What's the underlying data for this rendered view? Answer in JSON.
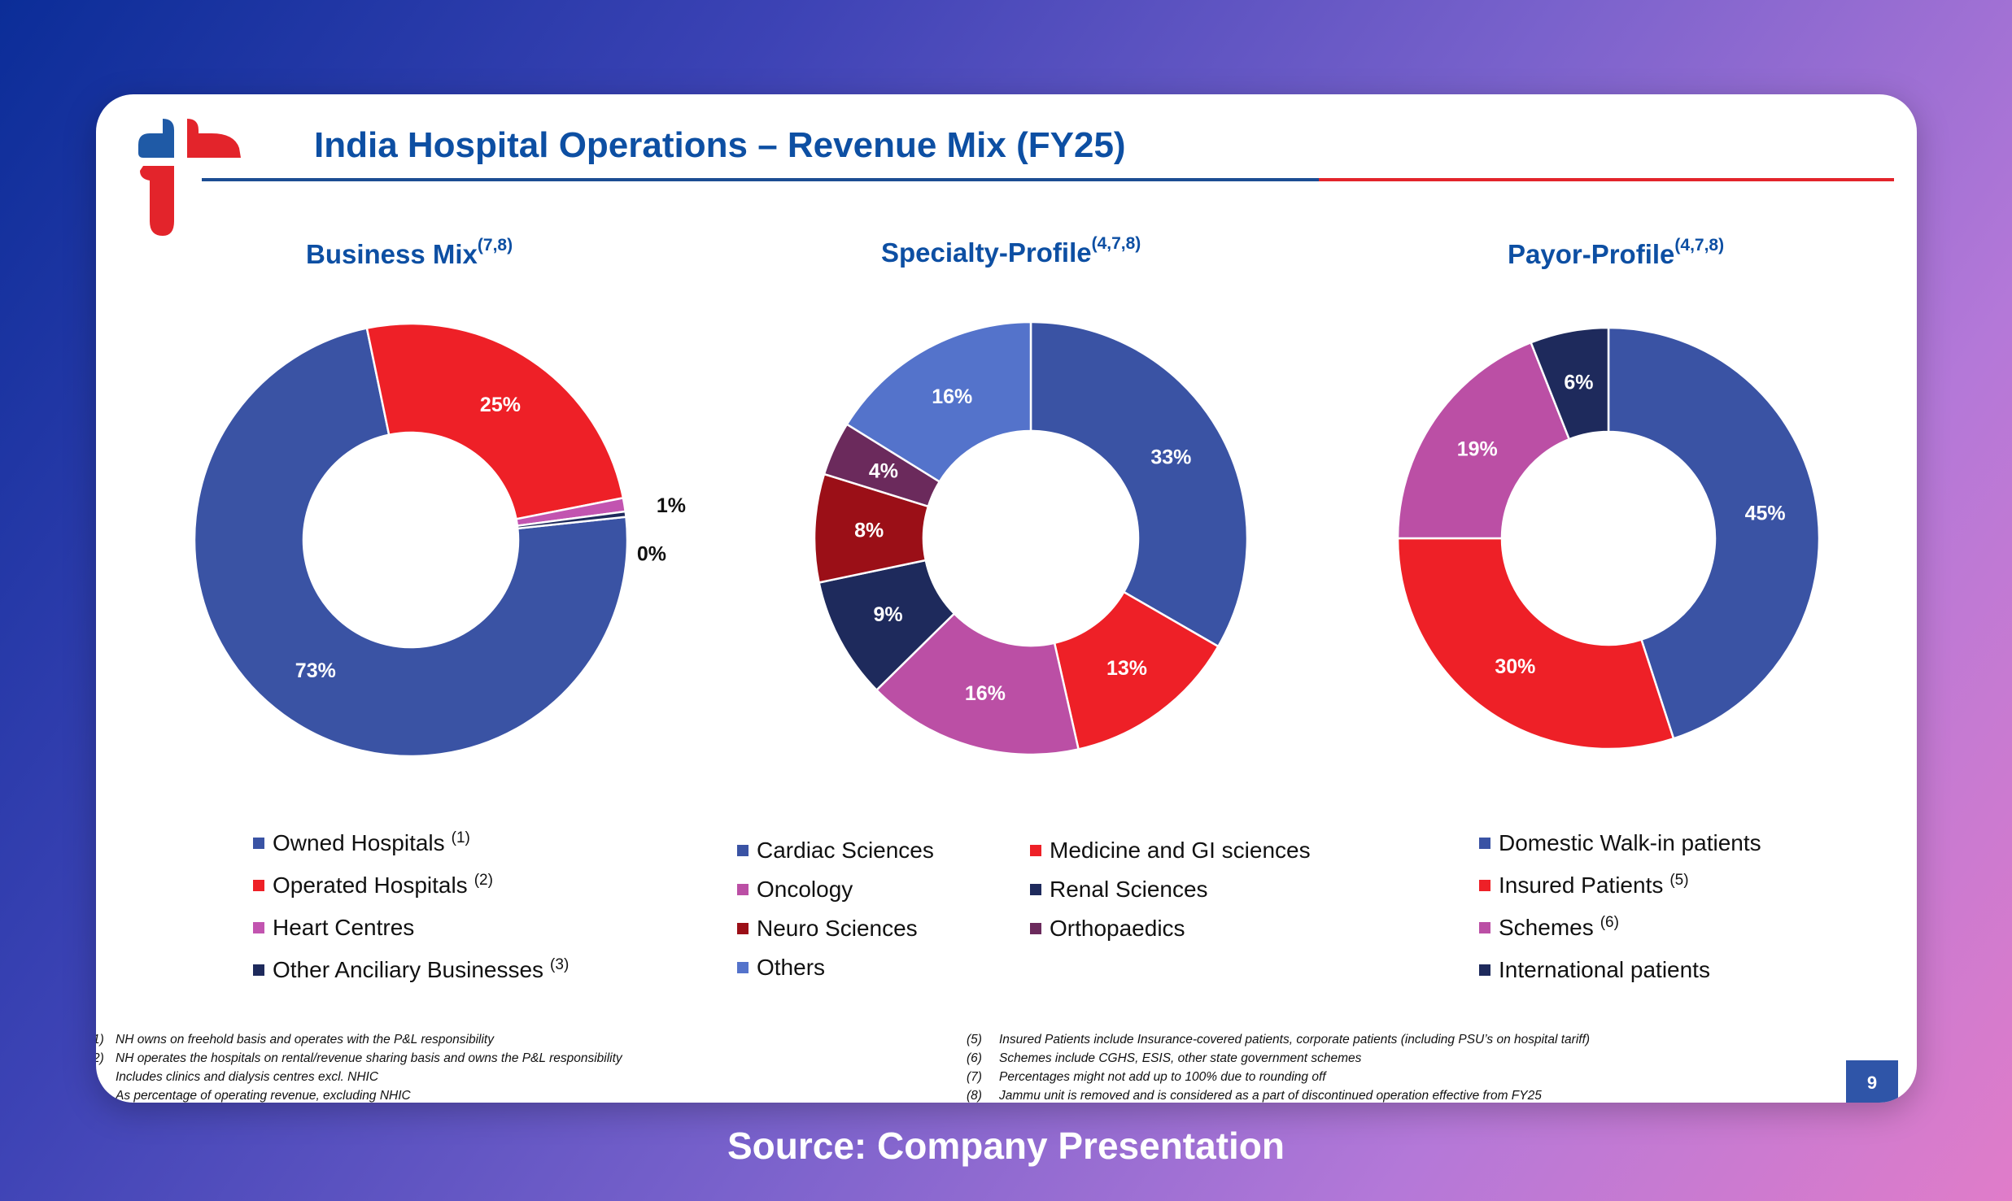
{
  "slide": {
    "title": "India Hospital Operations – Revenue Mix (FY25)",
    "page_number": "9",
    "source_caption": "Source: Company Presentation"
  },
  "colors": {
    "title_blue": "#0d4fa3",
    "rule_blue": "#1c4d93",
    "rule_red": "#e3242b"
  },
  "chart_data": [
    {
      "type": "pie",
      "donut": true,
      "title": "Business Mix",
      "title_sup": "(7,8)",
      "categories": [
        "Owned Hospitals",
        "Operated Hospitals",
        "Heart Centres",
        "Other Anciliary Businesses"
      ],
      "category_notes": [
        "(1)",
        "(2)",
        "",
        "(3)"
      ],
      "values": [
        73,
        25,
        1,
        0.4
      ],
      "labels": [
        "73%",
        "25%",
        "1%",
        "0%"
      ],
      "colors": [
        "#3a53a4",
        "#ee2027",
        "#c254b0",
        "#1e2a5c"
      ],
      "legend_position": "bottom"
    },
    {
      "type": "pie",
      "donut": true,
      "title": "Specialty-Profile",
      "title_sup": "(4,7,8)",
      "categories": [
        "Cardiac Sciences",
        "Medicine and GI sciences",
        "Oncology",
        "Renal Sciences",
        "Neuro Sciences",
        "Orthopaedics",
        "Others"
      ],
      "slice_order": [
        "Cardiac Sciences",
        "Medicine and GI sciences",
        "Oncology",
        "Renal Sciences",
        "Neuro Sciences",
        "Orthopaedics",
        "Others"
      ],
      "values": [
        33,
        13,
        16,
        9,
        8,
        4,
        16
      ],
      "labels": [
        "33%",
        "13%",
        "16%",
        "9%",
        "8%",
        "4%",
        "16%"
      ],
      "colors": [
        "#3a53a4",
        "#ee2027",
        "#bb4fa5",
        "#1e2a5c",
        "#9b0f17",
        "#6b2a5c",
        "#5473cb"
      ],
      "legend_position": "bottom"
    },
    {
      "type": "pie",
      "donut": true,
      "title": "Payor-Profile",
      "title_sup": "(4,7,8)",
      "categories": [
        "Domestic Walk-in patients",
        "Insured Patients",
        "Schemes",
        "International patients"
      ],
      "category_notes": [
        "",
        "(5)",
        "(6)",
        ""
      ],
      "values": [
        45,
        30,
        19,
        6
      ],
      "labels": [
        "45%",
        "30%",
        "19%",
        "6%"
      ],
      "colors": [
        "#3a53a4",
        "#ee2027",
        "#bb4fa5",
        "#1e2a5c"
      ],
      "legend_position": "bottom"
    }
  ],
  "footnotes_left": [
    {
      "num": "1)",
      "text": "NH owns on freehold basis and operates with the P&L responsibility"
    },
    {
      "num": "2)",
      "text": "NH operates the hospitals on rental/revenue sharing basis and owns the P&L responsibility"
    },
    {
      "num": ")",
      "text": "Includes clinics and dialysis centres excl. NHIC"
    },
    {
      "num": "",
      "text": "As percentage of operating revenue, excluding NHIC"
    }
  ],
  "footnotes_right": [
    {
      "num": "(5)",
      "text": "Insured Patients include Insurance-covered patients, corporate patients (including PSU’s on hospital tariff)"
    },
    {
      "num": "(6)",
      "text": "Schemes include CGHS, ESIS, other state government schemes"
    },
    {
      "num": "(7)",
      "text": "Percentages might not add up to 100% due to rounding off"
    },
    {
      "num": "(8)",
      "text": "Jammu unit is removed and is considered as a part of discontinued operation effective from FY25"
    }
  ]
}
